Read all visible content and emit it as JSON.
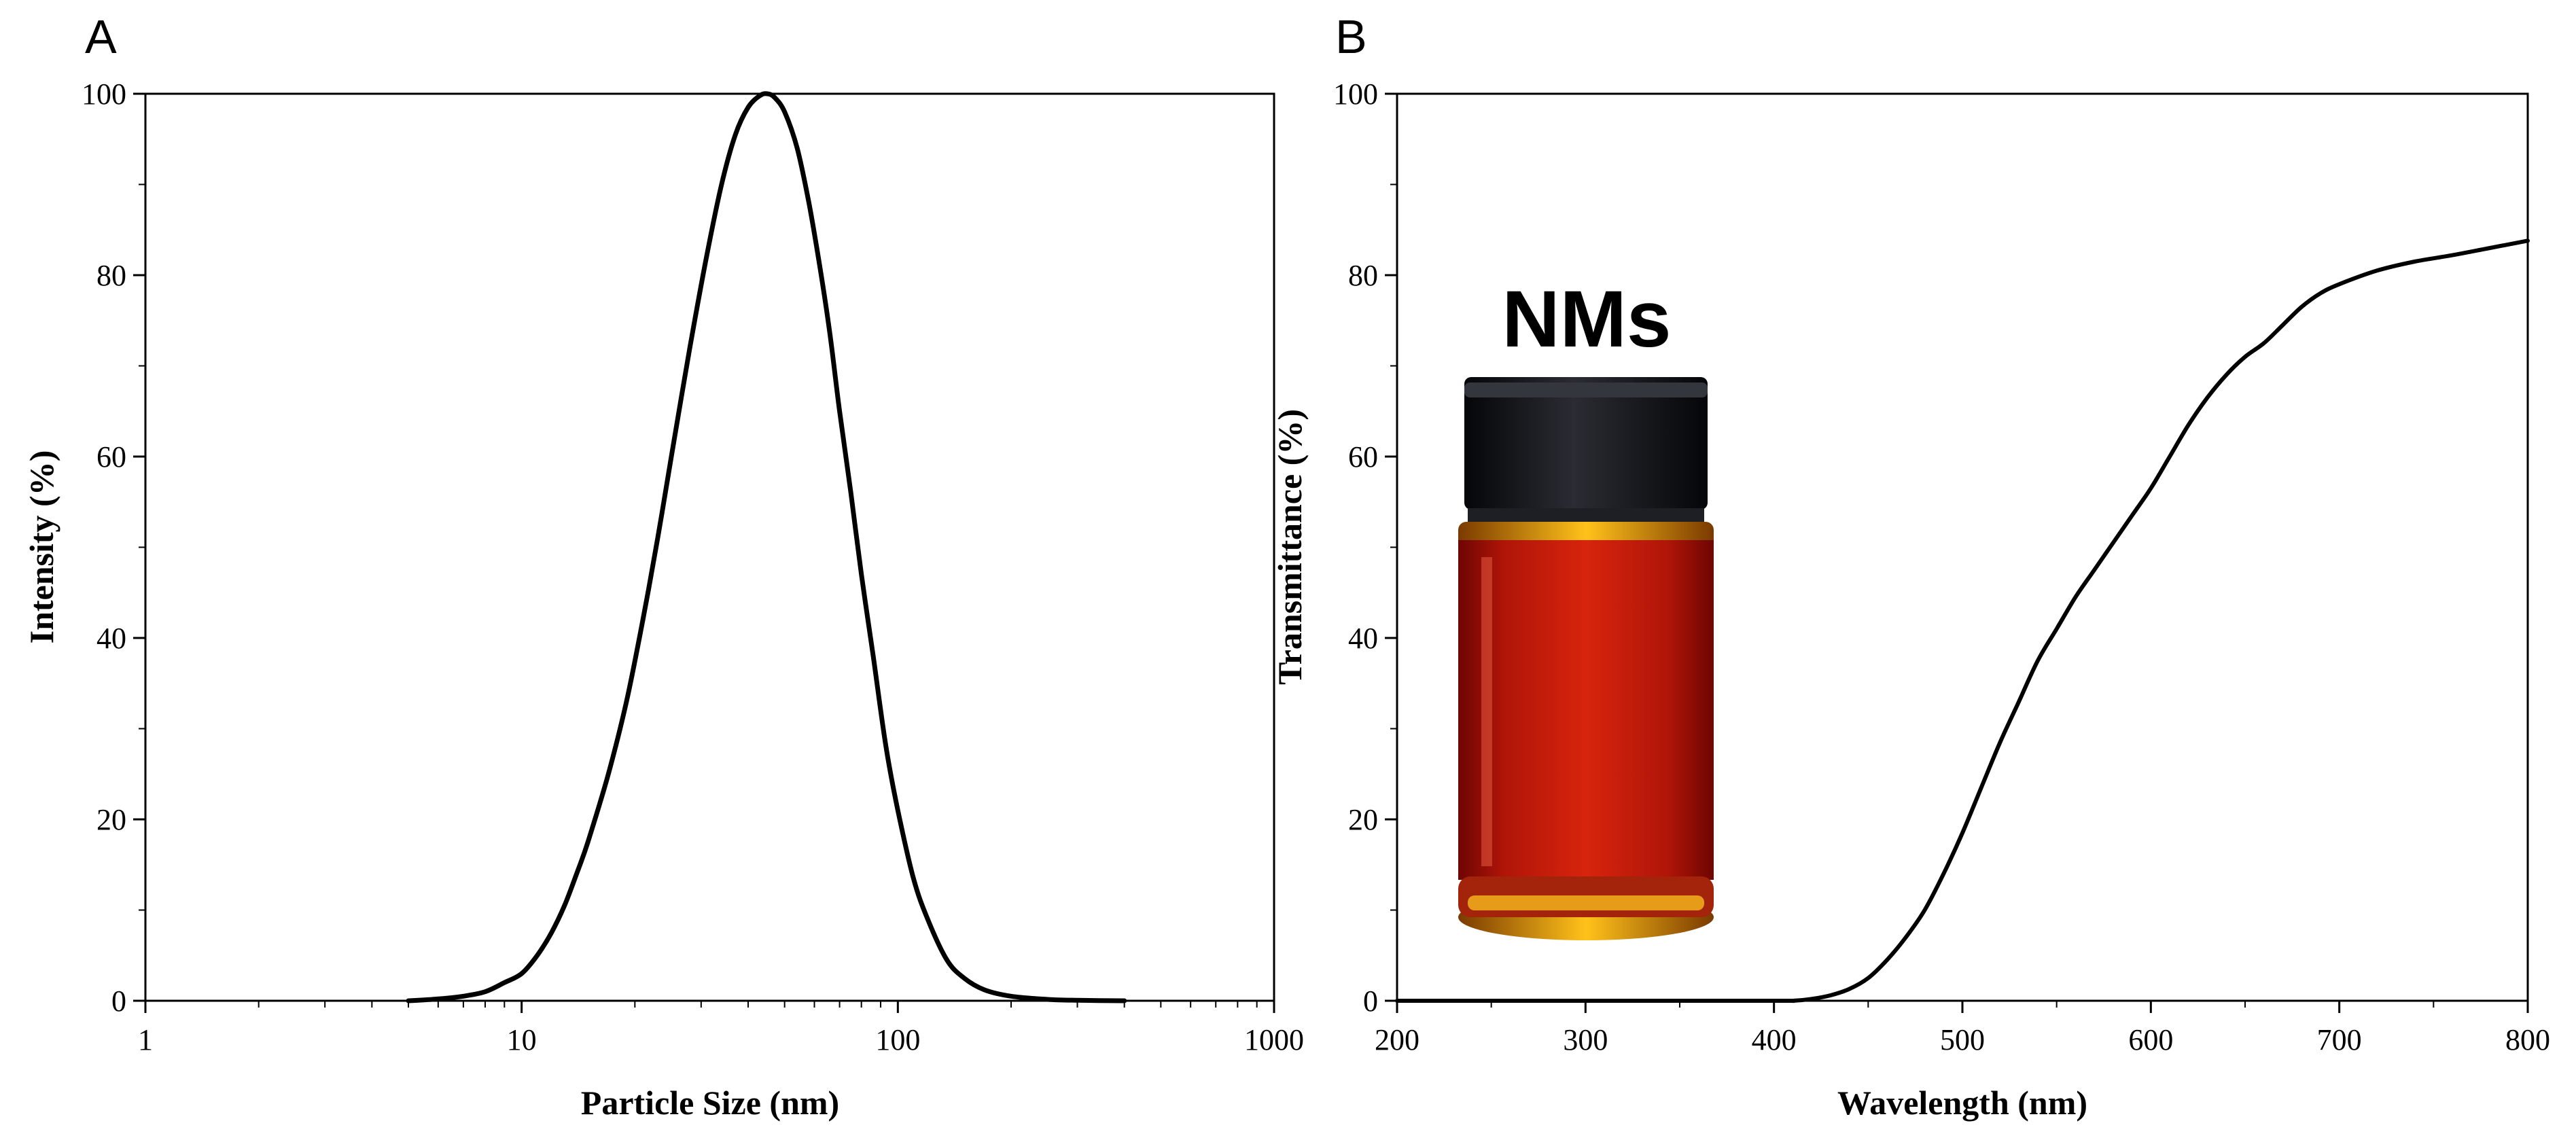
{
  "chart_data": [
    {
      "panel": "A",
      "type": "line",
      "title": "",
      "xlabel": "Particle Size (nm)",
      "ylabel": "Intensity (%)",
      "xscale": "log",
      "xlim": [
        1,
        1000
      ],
      "ylim": [
        0,
        100
      ],
      "xticks": [
        1,
        10,
        100,
        1000
      ],
      "yticks": [
        0,
        20,
        40,
        60,
        80,
        100
      ],
      "x_tick_labels": [
        "1",
        "10",
        "100",
        "1000"
      ],
      "y_tick_labels": [
        "0",
        "20",
        "40",
        "60",
        "80",
        "100"
      ],
      "series": [
        {
          "name": "Intensity",
          "x": [
            5.0,
            6.0,
            7.0,
            8.0,
            9.0,
            10.0,
            11.0,
            12.0,
            13.0,
            14.0,
            15.0,
            17.0,
            19.0,
            21.0,
            23.0,
            25.0,
            28.0,
            31.0,
            34.0,
            37.0,
            40.0,
            43.0,
            45.0,
            47.0,
            50.0,
            54.0,
            58.0,
            62.0,
            66.0,
            70.0,
            75.0,
            80.0,
            86.0,
            93.0,
            100.0,
            110.0,
            120.0,
            135.0,
            150.0,
            170.0,
            200.0,
            250.0,
            300.0,
            400.0
          ],
          "y": [
            0.0,
            0.2,
            0.5,
            1.0,
            2.0,
            3.0,
            5.0,
            7.5,
            10.5,
            14.0,
            17.5,
            25.0,
            33.0,
            42.0,
            51.0,
            60.0,
            72.0,
            82.0,
            90.0,
            95.5,
            98.5,
            99.8,
            100.0,
            99.6,
            98.0,
            94.0,
            88.0,
            81.0,
            73.5,
            65.0,
            56.0,
            47.0,
            38.0,
            28.0,
            21.0,
            13.5,
            9.0,
            4.5,
            2.5,
            1.2,
            0.5,
            0.15,
            0.05,
            0.0
          ]
        }
      ]
    },
    {
      "panel": "B",
      "type": "line",
      "title": "",
      "xlabel": "Wavelength (nm)",
      "ylabel": "Transmittance (%)",
      "xscale": "linear",
      "xlim": [
        200,
        800
      ],
      "ylim": [
        0,
        100
      ],
      "xticks": [
        200,
        300,
        400,
        500,
        600,
        700,
        800
      ],
      "yticks": [
        0,
        20,
        40,
        60,
        80,
        100
      ],
      "x_tick_labels": [
        "200",
        "300",
        "400",
        "500",
        "600",
        "700",
        "800"
      ],
      "y_tick_labels": [
        "0",
        "20",
        "40",
        "60",
        "80",
        "100"
      ],
      "series": [
        {
          "name": "Transmittance",
          "x": [
            200,
            300,
            400,
            410,
            420,
            430,
            440,
            450,
            460,
            470,
            480,
            490,
            500,
            510,
            520,
            530,
            540,
            550,
            560,
            570,
            580,
            590,
            600,
            610,
            620,
            630,
            640,
            650,
            660,
            670,
            680,
            690,
            700,
            720,
            740,
            760,
            780,
            800
          ],
          "y": [
            0,
            0,
            0,
            0,
            0.2,
            0.6,
            1.3,
            2.5,
            4.5,
            7.0,
            10.0,
            14.0,
            18.5,
            23.5,
            28.5,
            33.0,
            37.5,
            41.0,
            44.5,
            47.5,
            50.5,
            53.5,
            56.5,
            60.0,
            63.5,
            66.5,
            69.0,
            71.0,
            72.5,
            74.5,
            76.5,
            78.0,
            79.0,
            80.5,
            81.5,
            82.2,
            83.0,
            83.8
          ]
        }
      ],
      "inset": {
        "label": "NMs",
        "liquid_color": "#c41a08",
        "cap_color": "#15161a"
      }
    }
  ]
}
